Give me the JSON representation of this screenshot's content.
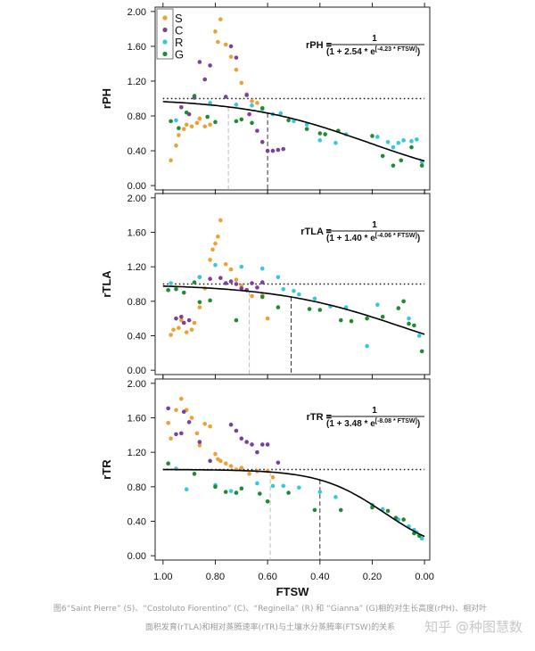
{
  "colors": {
    "S": "#f0a030",
    "C": "#7b3fa0",
    "R": "#35c8dc",
    "G": "#1f8a30",
    "fit_line": "#000000",
    "ref_line_grey": "#bbbbbb",
    "ref_line_dark": "#333333"
  },
  "legend": {
    "placement": "top-left",
    "items": [
      {
        "key": "S",
        "label": "S"
      },
      {
        "key": "C",
        "label": "C"
      },
      {
        "key": "R",
        "label": "R"
      },
      {
        "key": "G",
        "label": "G"
      }
    ]
  },
  "x_axis": {
    "title": "FTSW",
    "reversed": true,
    "ticks": [
      "1.00",
      "0.80",
      "0.60",
      "0.40",
      "0.20",
      "0.00"
    ]
  },
  "caption": {
    "line1": "图6“Saint Pierre” (S)、“Costoluto Fiorentino” (C)、“Reginella” (R) 和 “Gianna” (G)相的对生长高度(rPH)、相对叶",
    "line2": "面积发育(rTLA)和相对蒸腾速率(rTR)与土壤水分蒸腾率(FTSW)的关系"
  },
  "watermark": "知乎 @种图慧数",
  "chart_data": [
    {
      "type": "scatter",
      "ylabel": "rPH",
      "xlabel": "FTSW",
      "xlim": [
        1.03,
        -0.02
      ],
      "ylim": [
        -0.05,
        2.05
      ],
      "yticks": [
        "0.00",
        "0.40",
        "0.80",
        "1.20",
        "1.60",
        "2.00"
      ],
      "equation": {
        "lhs": "rPH =",
        "num": "1",
        "den_a": "(1 + 2.54 * e",
        "den_exp": "[-4.23 * FTSW]",
        "den_b": ")"
      },
      "reference_y": 1.0,
      "thresholds": [
        0.75,
        0.6
      ],
      "fit": {
        "a": 2.54,
        "b": 4.23
      },
      "series": [
        {
          "name": "S",
          "points": [
            [
              0.97,
              0.29
            ],
            [
              0.95,
              0.46
            ],
            [
              0.94,
              0.58
            ],
            [
              0.92,
              0.65
            ],
            [
              0.91,
              0.7
            ],
            [
              0.89,
              0.68
            ],
            [
              0.87,
              0.72
            ],
            [
              0.86,
              0.77
            ],
            [
              0.84,
              0.68
            ],
            [
              0.82,
              0.7
            ],
            [
              0.8,
              1.77
            ],
            [
              0.79,
              1.65
            ],
            [
              0.78,
              1.91
            ],
            [
              0.76,
              1.62
            ],
            [
              0.74,
              1.48
            ],
            [
              0.72,
              1.33
            ],
            [
              0.7,
              1.18
            ],
            [
              0.68,
              1.05
            ],
            [
              0.66,
              0.97
            ],
            [
              0.64,
              0.95
            ]
          ]
        },
        {
          "name": "C",
          "points": [
            [
              0.93,
              0.9
            ],
            [
              0.9,
              0.82
            ],
            [
              0.88,
              1.01
            ],
            [
              0.86,
              1.42
            ],
            [
              0.84,
              1.22
            ],
            [
              0.82,
              1.38
            ],
            [
              0.76,
              1.02
            ],
            [
              0.74,
              1.6
            ],
            [
              0.72,
              1.47
            ],
            [
              0.68,
              1.04
            ],
            [
              0.67,
              0.82
            ],
            [
              0.64,
              0.63
            ],
            [
              0.62,
              0.5
            ],
            [
              0.6,
              0.4
            ],
            [
              0.58,
              0.4
            ],
            [
              0.56,
              0.41
            ],
            [
              0.54,
              0.42
            ]
          ]
        },
        {
          "name": "R",
          "points": [
            [
              0.95,
              0.75
            ],
            [
              0.82,
              0.95
            ],
            [
              0.72,
              0.93
            ],
            [
              0.66,
              0.92
            ],
            [
              0.62,
              0.88
            ],
            [
              0.58,
              0.82
            ],
            [
              0.55,
              0.83
            ],
            [
              0.5,
              0.74
            ],
            [
              0.45,
              0.7
            ],
            [
              0.4,
              0.52
            ],
            [
              0.34,
              0.49
            ],
            [
              0.3,
              0.59
            ],
            [
              0.18,
              0.56
            ],
            [
              0.14,
              0.5
            ],
            [
              0.12,
              0.44
            ],
            [
              0.1,
              0.49
            ],
            [
              0.08,
              0.52
            ],
            [
              0.05,
              0.51
            ],
            [
              0.03,
              0.53
            ],
            [
              0.01,
              0.27
            ]
          ]
        },
        {
          "name": "G",
          "points": [
            [
              0.97,
              0.74
            ],
            [
              0.94,
              0.66
            ],
            [
              0.91,
              0.84
            ],
            [
              0.88,
              1.03
            ],
            [
              0.83,
              0.79
            ],
            [
              0.8,
              0.73
            ],
            [
              0.72,
              0.74
            ],
            [
              0.7,
              0.76
            ],
            [
              0.66,
              0.72
            ],
            [
              0.62,
              0.89
            ],
            [
              0.52,
              0.75
            ],
            [
              0.45,
              0.65
            ],
            [
              0.4,
              0.6
            ],
            [
              0.38,
              0.59
            ],
            [
              0.33,
              0.63
            ],
            [
              0.2,
              0.57
            ],
            [
              0.16,
              0.34
            ],
            [
              0.12,
              0.23
            ],
            [
              0.09,
              0.29
            ],
            [
              0.05,
              0.44
            ],
            [
              0.01,
              0.23
            ]
          ]
        }
      ]
    },
    {
      "type": "scatter",
      "ylabel": "rTLA",
      "xlabel": "FTSW",
      "xlim": [
        1.03,
        -0.02
      ],
      "ylim": [
        -0.05,
        2.05
      ],
      "yticks": [
        "0.00",
        "0.40",
        "0.80",
        "1.20",
        "1.60",
        "2.00"
      ],
      "equation": {
        "lhs": "rTLA =",
        "num": "1",
        "den_a": "(1 + 1.40 * e",
        "den_exp": "[-4.06 * FTSW]",
        "den_b": ")"
      },
      "reference_y": 1.0,
      "thresholds": [
        0.67,
        0.51
      ],
      "fit": {
        "a": 1.4,
        "b": 4.06
      },
      "series": [
        {
          "name": "S",
          "points": [
            [
              0.97,
              0.41
            ],
            [
              0.96,
              0.47
            ],
            [
              0.94,
              0.49
            ],
            [
              0.93,
              0.58
            ],
            [
              0.91,
              0.44
            ],
            [
              0.89,
              0.47
            ],
            [
              0.88,
              0.55
            ],
            [
              0.86,
              0.73
            ],
            [
              0.84,
              0.95
            ],
            [
              0.82,
              1.28
            ],
            [
              0.81,
              1.4
            ],
            [
              0.8,
              1.47
            ],
            [
              0.79,
              1.55
            ],
            [
              0.78,
              1.74
            ],
            [
              0.76,
              1.23
            ],
            [
              0.74,
              1.17
            ],
            [
              0.72,
              1.05
            ],
            [
              0.7,
              0.98
            ],
            [
              0.68,
              0.93
            ],
            [
              0.66,
              0.86
            ],
            [
              0.62,
              0.87
            ],
            [
              0.6,
              0.6
            ]
          ]
        },
        {
          "name": "C",
          "points": [
            [
              0.95,
              0.6
            ],
            [
              0.93,
              0.62
            ],
            [
              0.92,
              0.55
            ],
            [
              0.9,
              0.58
            ],
            [
              0.86,
              1.08
            ],
            [
              0.82,
              1.06
            ],
            [
              0.78,
              1.07
            ],
            [
              0.76,
              1.01
            ],
            [
              0.74,
              1.03
            ],
            [
              0.72,
              1.0
            ],
            [
              0.7,
              0.95
            ],
            [
              0.68,
              0.93
            ],
            [
              0.66,
              1.01
            ],
            [
              0.64,
              0.96
            ],
            [
              0.62,
              1.02
            ]
          ]
        },
        {
          "name": "R",
          "points": [
            [
              0.97,
              1.01
            ],
            [
              0.86,
              1.08
            ],
            [
              0.8,
              1.22
            ],
            [
              0.7,
              1.2
            ],
            [
              0.62,
              1.18
            ],
            [
              0.56,
              1.08
            ],
            [
              0.54,
              0.94
            ],
            [
              0.5,
              0.92
            ],
            [
              0.48,
              0.88
            ],
            [
              0.42,
              0.83
            ],
            [
              0.36,
              0.74
            ],
            [
              0.3,
              0.73
            ],
            [
              0.22,
              0.28
            ],
            [
              0.18,
              0.76
            ],
            [
              0.06,
              0.6
            ],
            [
              0.02,
              0.4
            ]
          ]
        },
        {
          "name": "G",
          "points": [
            [
              0.98,
              0.93
            ],
            [
              0.95,
              0.94
            ],
            [
              0.92,
              0.9
            ],
            [
              0.88,
              1.02
            ],
            [
              0.86,
              0.79
            ],
            [
              0.82,
              0.81
            ],
            [
              0.72,
              0.58
            ],
            [
              0.62,
              0.85
            ],
            [
              0.56,
              0.73
            ],
            [
              0.44,
              0.71
            ],
            [
              0.4,
              0.7
            ],
            [
              0.32,
              0.58
            ],
            [
              0.28,
              0.57
            ],
            [
              0.22,
              0.6
            ],
            [
              0.16,
              0.62
            ],
            [
              0.1,
              0.72
            ],
            [
              0.08,
              0.8
            ],
            [
              0.06,
              0.54
            ],
            [
              0.04,
              0.52
            ],
            [
              0.01,
              0.22
            ]
          ]
        }
      ]
    },
    {
      "type": "scatter",
      "ylabel": "rTR",
      "xlabel": "FTSW",
      "xlim": [
        1.03,
        -0.02
      ],
      "ylim": [
        -0.05,
        2.05
      ],
      "yticks": [
        "0.00",
        "0.40",
        "0.80",
        "1.20",
        "1.60",
        "2.00"
      ],
      "equation": {
        "lhs": "rTR =",
        "num": "1",
        "den_a": "(1 + 3.48 * e",
        "den_exp": "[-8.08 * FTSW]",
        "den_b": ")"
      },
      "reference_y": 1.0,
      "thresholds": [
        0.59,
        0.4
      ],
      "fit": {
        "a": 3.48,
        "b": 8.08
      },
      "series": [
        {
          "name": "S",
          "points": [
            [
              0.98,
              1.54
            ],
            [
              0.97,
              1.36
            ],
            [
              0.95,
              1.69
            ],
            [
              0.93,
              1.82
            ],
            [
              0.91,
              1.69
            ],
            [
              0.89,
              1.6
            ],
            [
              0.87,
              1.42
            ],
            [
              0.86,
              1.28
            ],
            [
              0.84,
              1.53
            ],
            [
              0.82,
              1.5
            ],
            [
              0.8,
              1.18
            ],
            [
              0.79,
              1.12
            ],
            [
              0.78,
              1.1
            ],
            [
              0.76,
              1.07
            ],
            [
              0.74,
              1.04
            ],
            [
              0.72,
              1.0
            ],
            [
              0.7,
              1.02
            ],
            [
              0.67,
              0.95
            ],
            [
              0.64,
              0.98
            ],
            [
              0.6,
              0.98
            ],
            [
              0.58,
              0.91
            ]
          ]
        },
        {
          "name": "C",
          "points": [
            [
              0.98,
              1.71
            ],
            [
              0.95,
              1.41
            ],
            [
              0.93,
              1.42
            ],
            [
              0.92,
              1.67
            ],
            [
              0.9,
              1.55
            ],
            [
              0.86,
              1.32
            ],
            [
              0.82,
              1.1
            ],
            [
              0.74,
              1.52
            ],
            [
              0.72,
              1.45
            ],
            [
              0.7,
              1.36
            ],
            [
              0.68,
              1.32
            ],
            [
              0.66,
              1.29
            ],
            [
              0.64,
              1.2
            ],
            [
              0.62,
              1.29
            ],
            [
              0.6,
              1.29
            ],
            [
              0.56,
              1.08
            ]
          ]
        },
        {
          "name": "R",
          "points": [
            [
              0.95,
              1.01
            ],
            [
              0.91,
              0.77
            ],
            [
              0.8,
              0.82
            ],
            [
              0.74,
              0.75
            ],
            [
              0.64,
              0.84
            ],
            [
              0.58,
              0.81
            ],
            [
              0.54,
              0.81
            ],
            [
              0.48,
              0.79
            ],
            [
              0.4,
              0.74
            ],
            [
              0.34,
              0.68
            ],
            [
              0.2,
              0.59
            ],
            [
              0.16,
              0.54
            ],
            [
              0.1,
              0.42
            ],
            [
              0.06,
              0.34
            ],
            [
              0.04,
              0.3
            ],
            [
              0.03,
              0.27
            ],
            [
              0.01,
              0.2
            ]
          ]
        },
        {
          "name": "G",
          "points": [
            [
              0.98,
              1.07
            ],
            [
              0.88,
              0.95
            ],
            [
              0.8,
              0.8
            ],
            [
              0.76,
              0.74
            ],
            [
              0.72,
              0.73
            ],
            [
              0.7,
              0.78
            ],
            [
              0.63,
              0.72
            ],
            [
              0.6,
              0.63
            ],
            [
              0.52,
              0.73
            ],
            [
              0.42,
              0.53
            ],
            [
              0.32,
              0.53
            ],
            [
              0.2,
              0.56
            ],
            [
              0.14,
              0.52
            ],
            [
              0.11,
              0.44
            ],
            [
              0.08,
              0.42
            ],
            [
              0.04,
              0.26
            ],
            [
              0.02,
              0.23
            ]
          ]
        }
      ]
    }
  ]
}
